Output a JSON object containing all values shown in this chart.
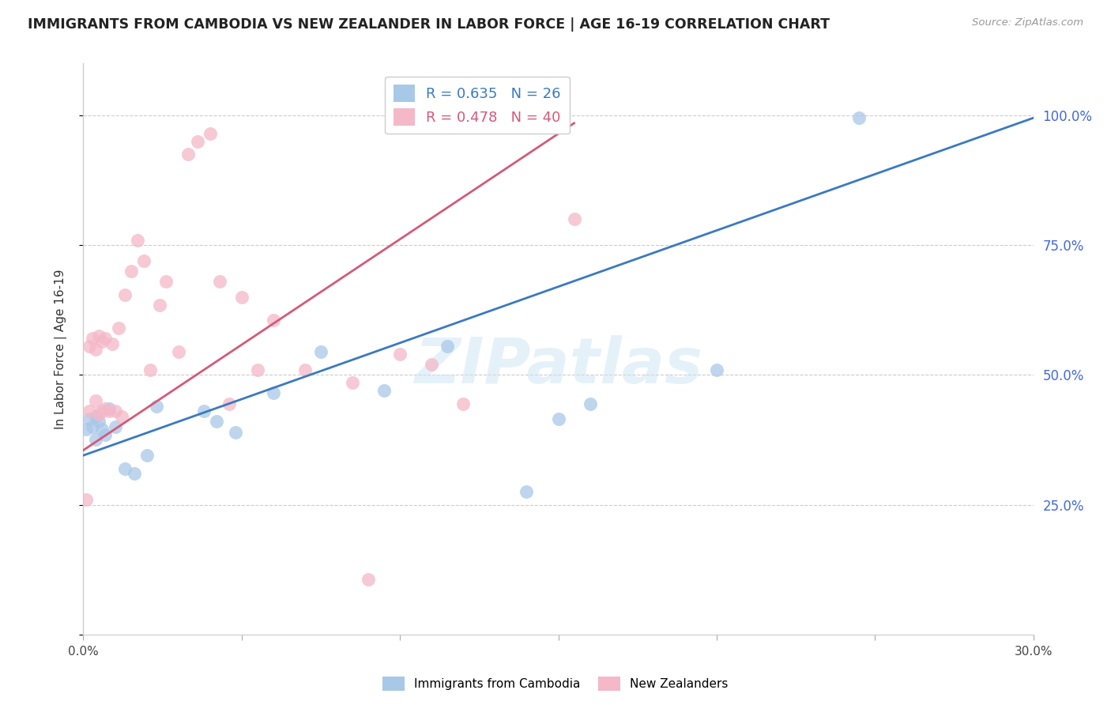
{
  "title": "IMMIGRANTS FROM CAMBODIA VS NEW ZEALANDER IN LABOR FORCE | AGE 16-19 CORRELATION CHART",
  "source": "Source: ZipAtlas.com",
  "ylabel": "In Labor Force | Age 16-19",
  "xlim": [
    0.0,
    0.3
  ],
  "ylim": [
    0.0,
    1.1
  ],
  "yticks": [
    0.0,
    0.25,
    0.5,
    0.75,
    1.0
  ],
  "ytick_labels": [
    "",
    "25.0%",
    "50.0%",
    "75.0%",
    "100.0%"
  ],
  "xticks": [
    0.0,
    0.05,
    0.1,
    0.15,
    0.2,
    0.25,
    0.3
  ],
  "xtick_labels": [
    "0.0%",
    "",
    "",
    "",
    "",
    "",
    "30.0%"
  ],
  "blue_R": 0.635,
  "blue_N": 26,
  "pink_R": 0.478,
  "pink_N": 40,
  "blue_scatter_color": "#a8c8e8",
  "pink_scatter_color": "#f4b8c8",
  "blue_line_color": "#3a7abf",
  "pink_line_color": "#d45a7a",
  "right_axis_color": "#4169E1",
  "watermark_text": "ZIPatlas",
  "blue_line_x": [
    0.0,
    0.3
  ],
  "blue_line_y": [
    0.345,
    0.995
  ],
  "pink_line_x": [
    0.0,
    0.155
  ],
  "pink_line_y": [
    0.355,
    0.985
  ],
  "blue_points_x": [
    0.001,
    0.002,
    0.003,
    0.004,
    0.004,
    0.005,
    0.006,
    0.007,
    0.008,
    0.01,
    0.013,
    0.016,
    0.02,
    0.023,
    0.038,
    0.042,
    0.048,
    0.06,
    0.075,
    0.095,
    0.115,
    0.14,
    0.15,
    0.16,
    0.2,
    0.245
  ],
  "blue_points_y": [
    0.395,
    0.415,
    0.4,
    0.375,
    0.42,
    0.41,
    0.395,
    0.385,
    0.435,
    0.4,
    0.32,
    0.31,
    0.345,
    0.44,
    0.43,
    0.41,
    0.39,
    0.465,
    0.545,
    0.47,
    0.555,
    0.275,
    0.415,
    0.445,
    0.51,
    0.995
  ],
  "pink_points_x": [
    0.001,
    0.002,
    0.002,
    0.003,
    0.004,
    0.004,
    0.005,
    0.005,
    0.006,
    0.006,
    0.007,
    0.007,
    0.008,
    0.009,
    0.01,
    0.011,
    0.012,
    0.013,
    0.015,
    0.017,
    0.019,
    0.021,
    0.024,
    0.026,
    0.03,
    0.033,
    0.036,
    0.04,
    0.043,
    0.046,
    0.05,
    0.055,
    0.06,
    0.07,
    0.085,
    0.09,
    0.1,
    0.11,
    0.12,
    0.155
  ],
  "pink_points_y": [
    0.26,
    0.43,
    0.555,
    0.57,
    0.45,
    0.55,
    0.575,
    0.425,
    0.565,
    0.43,
    0.435,
    0.57,
    0.43,
    0.56,
    0.43,
    0.59,
    0.42,
    0.655,
    0.7,
    0.76,
    0.72,
    0.51,
    0.635,
    0.68,
    0.545,
    0.925,
    0.95,
    0.965,
    0.68,
    0.445,
    0.65,
    0.51,
    0.605,
    0.51,
    0.485,
    0.107,
    0.54,
    0.52,
    0.445,
    0.8
  ]
}
